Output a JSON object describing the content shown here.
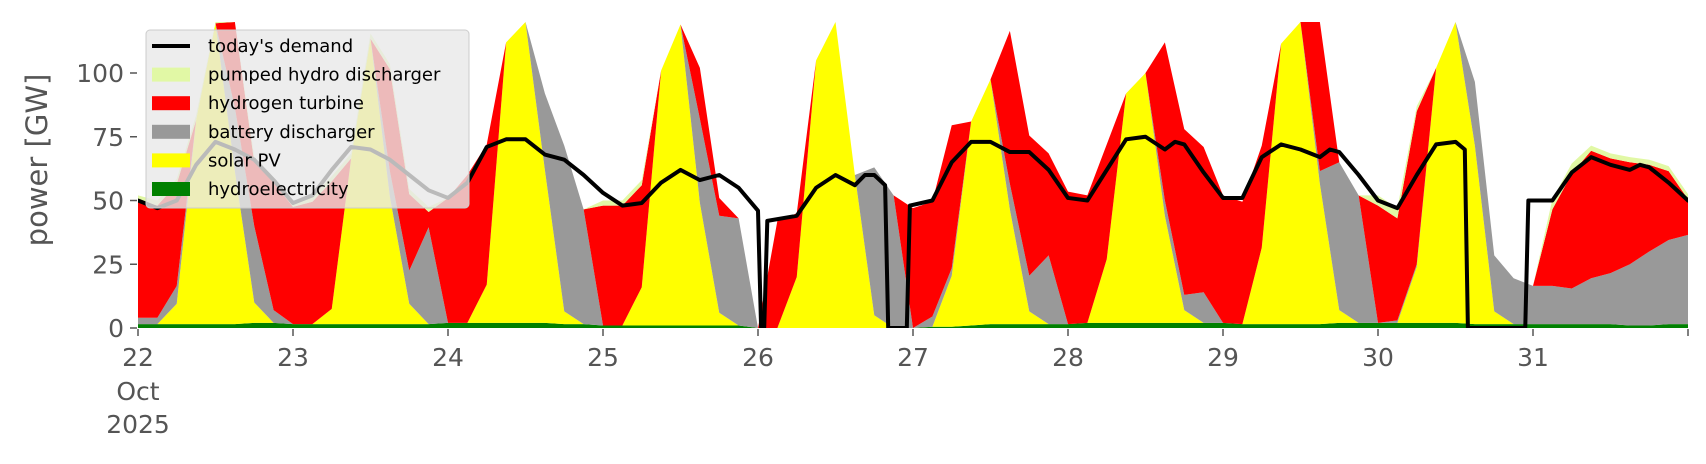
{
  "chart_data": {
    "type": "area",
    "ylabel": "power [GW]",
    "ylim": [
      0,
      120
    ],
    "xlim": [
      0,
      10
    ],
    "yticks": [
      0,
      25,
      50,
      75,
      100
    ],
    "x_tick_labels": [
      "22",
      "23",
      "24",
      "25",
      "26",
      "27",
      "28",
      "29",
      "30",
      "31"
    ],
    "x_tick_sublabels": [
      "Oct",
      "2025"
    ],
    "grid": false,
    "legend_position": "top-left",
    "legend": [
      {
        "label": "today's demand",
        "kind": "line",
        "color": "#000000"
      },
      {
        "label": "pumped hydro discharger",
        "kind": "patch",
        "color": "#e1f8a5"
      },
      {
        "label": "hydrogen turbine",
        "kind": "patch",
        "color": "#ff0000"
      },
      {
        "label": "battery discharger",
        "kind": "patch",
        "color": "#999999"
      },
      {
        "label": "solar PV",
        "kind": "patch",
        "color": "#ffff00"
      },
      {
        "label": "hydroelectricity",
        "kind": "patch",
        "color": "#008000"
      }
    ],
    "x": [
      0,
      0.125,
      0.25,
      0.375,
      0.5,
      0.625,
      0.75,
      0.875,
      1,
      1.125,
      1.25,
      1.375,
      1.5,
      1.625,
      1.75,
      1.875,
      2,
      2.125,
      2.25,
      2.375,
      2.5,
      2.625,
      2.75,
      2.875,
      3,
      3.125,
      3.25,
      3.375,
      3.5,
      3.625,
      3.75,
      3.875,
      4,
      4.125,
      4.25,
      4.375,
      4.5,
      4.625,
      4.75,
      4.875,
      5,
      5.125,
      5.25,
      5.375,
      5.5,
      5.625,
      5.75,
      5.875,
      6,
      6.125,
      6.25,
      6.375,
      6.5,
      6.625,
      6.75,
      6.875,
      7,
      7.125,
      7.25,
      7.375,
      7.5,
      7.625,
      7.75,
      7.875,
      8,
      8.125,
      8.25,
      8.375,
      8.5,
      8.625,
      8.75,
      8.875,
      9,
      9.125,
      9.25,
      9.375,
      9.5,
      9.625,
      9.75,
      9.875,
      10
    ],
    "series": [
      {
        "name": "hydroelectricity",
        "color": "#008000",
        "values": [
          1.5,
          1.5,
          1.5,
          1.5,
          1.5,
          1.5,
          2.0,
          2.0,
          1.5,
          1.5,
          1.5,
          1.5,
          1.5,
          1.5,
          1.5,
          1.5,
          2.0,
          2.0,
          2.0,
          2.0,
          2.0,
          2.0,
          1.5,
          1.5,
          1.0,
          1.0,
          1.0,
          1.0,
          1.0,
          1.0,
          1.0,
          1.0,
          0,
          0,
          0,
          0,
          0,
          0,
          0,
          0,
          0,
          0.5,
          0.5,
          1.0,
          1.5,
          1.5,
          1.5,
          1.5,
          1.5,
          2.0,
          2.0,
          2.0,
          2.0,
          2.0,
          2.0,
          2.0,
          2.0,
          1.5,
          1.5,
          1.5,
          1.5,
          1.5,
          2.0,
          2.0,
          2.0,
          2.0,
          2.0,
          2.0,
          2.0,
          1.5,
          1.5,
          1.5,
          1.5,
          1.5,
          1.5,
          1.5,
          1.5,
          1.0,
          1.0,
          1.5,
          1.5
        ]
      },
      {
        "name": "solar PV",
        "color": "#ffff00",
        "values": [
          0,
          0,
          8,
          80,
          118,
          60,
          8,
          0,
          0,
          0,
          6,
          65,
          112,
          50,
          8,
          0,
          0,
          0,
          15,
          110,
          130,
          60,
          5,
          0,
          0,
          0,
          15,
          100,
          118,
          48,
          5,
          0,
          0,
          0,
          20,
          105,
          130,
          60,
          5,
          0,
          0,
          0,
          20,
          80,
          96,
          45,
          5,
          0,
          0,
          0,
          25,
          90,
          98,
          42,
          5,
          0,
          0,
          0,
          30,
          110,
          130,
          55,
          5,
          0,
          0,
          0,
          22,
          100,
          130,
          70,
          5,
          0,
          0,
          0,
          0,
          0,
          0,
          0,
          0,
          0,
          0
        ]
      },
      {
        "name": "battery discharger",
        "color": "#999999",
        "values": [
          2.5,
          2.5,
          7,
          0,
          0,
          25,
          30,
          5,
          0,
          0,
          0,
          0,
          0,
          10,
          13,
          38,
          0,
          0,
          0,
          0,
          0,
          30,
          65,
          45,
          0,
          0,
          0,
          0,
          0,
          33,
          38,
          42,
          0,
          0,
          0,
          0,
          0,
          0,
          58,
          52,
          0,
          4,
          3,
          0,
          0,
          10,
          14,
          27,
          0,
          0,
          0,
          0,
          0,
          6,
          6,
          12,
          0,
          0,
          0,
          0,
          0,
          5,
          58,
          50,
          0,
          1,
          1,
          0,
          0,
          25,
          22,
          18,
          15,
          15,
          14,
          18,
          20,
          24,
          29,
          33,
          35
        ]
      },
      {
        "name": "hydrogen turbine",
        "color": "#ff0000",
        "values": [
          46,
          44,
          40,
          0,
          0,
          40,
          25,
          50,
          46,
          48,
          50,
          0,
          0,
          40,
          30,
          6,
          49,
          58,
          55,
          0,
          0,
          0,
          0,
          0,
          47,
          47,
          40,
          0,
          0,
          20,
          7,
          0,
          0,
          42,
          25,
          0,
          0,
          0,
          0,
          0,
          47,
          45,
          56,
          0,
          0,
          60,
          55,
          40,
          52,
          50,
          45,
          0,
          0,
          62,
          65,
          57,
          50,
          48,
          40,
          0,
          0,
          60,
          0,
          0,
          46,
          40,
          60,
          0,
          0,
          0,
          0,
          0,
          0,
          30,
          45,
          50,
          45,
          40,
          34,
          27,
          14
        ]
      },
      {
        "name": "pumped hydro discharger",
        "color": "#e1f8a5",
        "values": [
          2,
          2,
          2,
          2,
          2,
          2,
          2,
          2,
          2,
          2,
          2,
          2,
          2,
          2,
          2,
          2,
          0,
          0,
          0,
          0,
          0,
          0,
          0,
          0,
          2,
          2,
          2,
          0,
          0,
          0,
          0,
          0,
          0,
          0,
          0,
          0,
          0,
          0,
          0,
          0,
          0,
          0,
          0,
          0,
          0,
          0,
          0,
          0,
          0,
          0,
          0,
          0,
          0,
          0,
          0,
          0,
          0,
          0,
          0,
          0,
          0,
          0,
          0,
          0,
          4,
          4,
          2,
          0,
          0,
          0,
          0,
          0,
          0,
          4,
          4,
          2,
          2,
          2,
          2,
          2,
          2
        ]
      }
    ],
    "demand": {
      "name": "today's demand",
      "color": "#000000",
      "points": [
        [
          0,
          50
        ],
        [
          0.125,
          47
        ],
        [
          0.25,
          50
        ],
        [
          0.375,
          64
        ],
        [
          0.5,
          73
        ],
        [
          0.625,
          70
        ],
        [
          0.75,
          66
        ],
        [
          0.875,
          58
        ],
        [
          1,
          49
        ],
        [
          1.125,
          52
        ],
        [
          1.25,
          62
        ],
        [
          1.375,
          71
        ],
        [
          1.5,
          70
        ],
        [
          1.625,
          66
        ],
        [
          1.75,
          60
        ],
        [
          1.875,
          54
        ],
        [
          2,
          51
        ],
        [
          2.125,
          57
        ],
        [
          2.25,
          71
        ],
        [
          2.375,
          74
        ],
        [
          2.5,
          74
        ],
        [
          2.625,
          68
        ],
        [
          2.75,
          66
        ],
        [
          2.875,
          60
        ],
        [
          3,
          53
        ],
        [
          3.125,
          48
        ],
        [
          3.25,
          49
        ],
        [
          3.375,
          57
        ],
        [
          3.5,
          62
        ],
        [
          3.625,
          58
        ],
        [
          3.75,
          60
        ],
        [
          3.875,
          55
        ],
        [
          4,
          46
        ],
        [
          4.02,
          0
        ],
        [
          4.04,
          0
        ],
        [
          4.06,
          42
        ],
        [
          4.25,
          44
        ],
        [
          4.375,
          55
        ],
        [
          4.5,
          60
        ],
        [
          4.625,
          56
        ],
        [
          4.69,
          60
        ],
        [
          4.75,
          60
        ],
        [
          4.82,
          56
        ],
        [
          4.84,
          0
        ],
        [
          4.96,
          0
        ],
        [
          4.98,
          48
        ],
        [
          5.125,
          50
        ],
        [
          5.25,
          65
        ],
        [
          5.375,
          73
        ],
        [
          5.5,
          73
        ],
        [
          5.625,
          69
        ],
        [
          5.75,
          69
        ],
        [
          5.875,
          62
        ],
        [
          6,
          51
        ],
        [
          6.125,
          50
        ],
        [
          6.25,
          62
        ],
        [
          6.375,
          74
        ],
        [
          6.5,
          75
        ],
        [
          6.625,
          70
        ],
        [
          6.69,
          73
        ],
        [
          6.75,
          72
        ],
        [
          6.875,
          61
        ],
        [
          7,
          51
        ],
        [
          7.125,
          51
        ],
        [
          7.25,
          67
        ],
        [
          7.375,
          72
        ],
        [
          7.5,
          70
        ],
        [
          7.625,
          67
        ],
        [
          7.69,
          70
        ],
        [
          7.75,
          69
        ],
        [
          7.875,
          60
        ],
        [
          8,
          50
        ],
        [
          8.125,
          47
        ],
        [
          8.25,
          60
        ],
        [
          8.375,
          72
        ],
        [
          8.5,
          73
        ],
        [
          8.56,
          70
        ],
        [
          8.58,
          0
        ],
        [
          8.95,
          0
        ],
        [
          8.97,
          50
        ],
        [
          9.125,
          50
        ],
        [
          9.25,
          61
        ],
        [
          9.375,
          67
        ],
        [
          9.5,
          64
        ],
        [
          9.625,
          62
        ],
        [
          9.69,
          64
        ],
        [
          9.75,
          63
        ],
        [
          9.875,
          57
        ],
        [
          10,
          50
        ]
      ]
    }
  }
}
